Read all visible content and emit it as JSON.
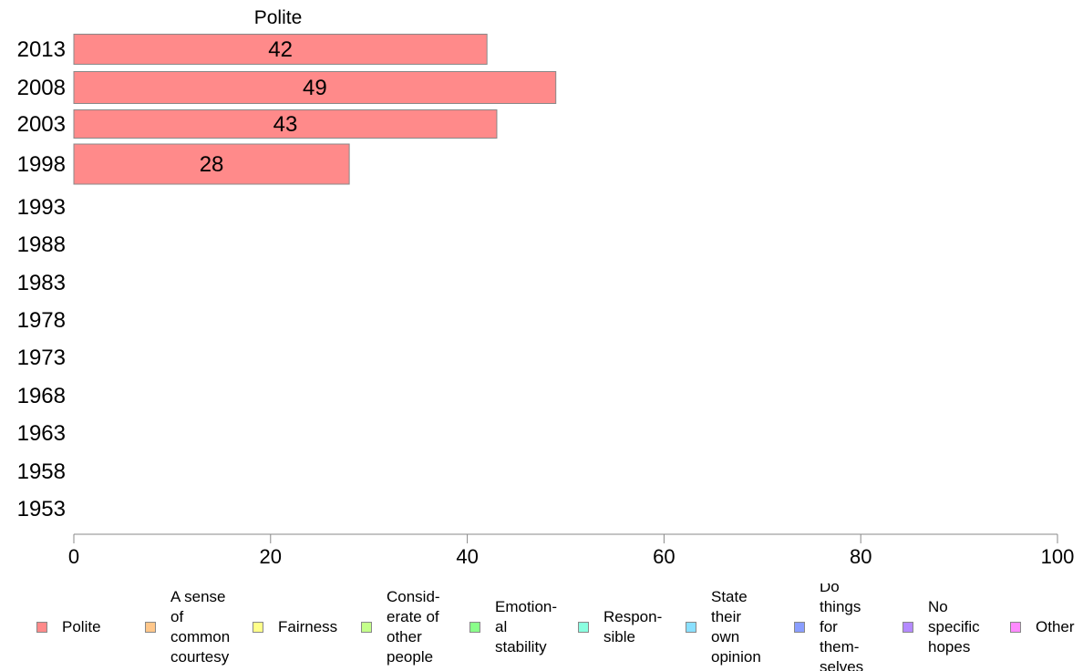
{
  "chart_data": {
    "type": "bar",
    "orientation": "horizontal",
    "title": "Polite",
    "categories": [
      "2013",
      "2008",
      "2003",
      "1998",
      "1993",
      "1988",
      "1983",
      "1978",
      "1973",
      "1968",
      "1963",
      "1958",
      "1953"
    ],
    "series": [
      {
        "name": "Polite",
        "color": "#ff8a8a",
        "values": [
          42,
          49,
          43,
          28,
          null,
          null,
          null,
          null,
          null,
          null,
          null,
          null,
          null
        ]
      }
    ],
    "data_labels": [
      "42",
      "49",
      "43",
      "28"
    ],
    "xlim": [
      0,
      100
    ],
    "xticks": [
      "0",
      "20",
      "40",
      "60",
      "80",
      "100"
    ],
    "grid": false,
    "legend_placement": "bottom"
  },
  "legend": [
    {
      "label": "Polite",
      "color": "#ff8a8a"
    },
    {
      "label": "A sense\nof\ncommon\ncourtesy",
      "color": "#ffc78a"
    },
    {
      "label": "Fairness",
      "color": "#ffff8a"
    },
    {
      "label": "Consid-\nerate of\nother\npeople",
      "color": "#c4ff8a"
    },
    {
      "label": "Emotion-\nal\nstability",
      "color": "#8aff8a"
    },
    {
      "label": "Respon-\nsible",
      "color": "#8affe0"
    },
    {
      "label": "State\ntheir\nown\nopinion",
      "color": "#8ae0ff"
    },
    {
      "label": "Do\nthings\nfor\nthem-\nselves",
      "color": "#8a9eff"
    },
    {
      "label": "No\nspecific\nhopes",
      "color": "#b48aff"
    },
    {
      "label": "Other",
      "color": "#ff8aff"
    }
  ]
}
